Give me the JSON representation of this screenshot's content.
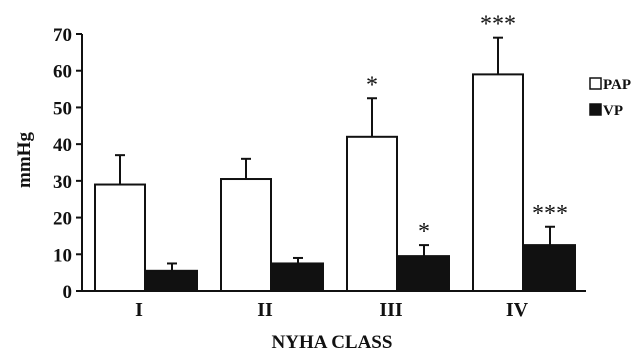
{
  "chart_data": {
    "type": "bar",
    "title": "",
    "xlabel": "NYHA CLASS",
    "ylabel": "mmHg",
    "ylim": [
      0,
      70
    ],
    "yticks": [
      0,
      10,
      20,
      30,
      40,
      50,
      60,
      70
    ],
    "categories": [
      "I",
      "II",
      "III",
      "IV"
    ],
    "series": [
      {
        "name": "PAPm",
        "color": "#ffffff",
        "values": [
          29,
          30.5,
          42,
          59
        ],
        "errors": [
          8,
          5.5,
          10.5,
          10
        ],
        "significance": [
          "",
          "",
          "*",
          "***"
        ]
      },
      {
        "name": "VP",
        "color": "#111111",
        "values": [
          5.5,
          7.5,
          9.5,
          12.5
        ],
        "errors": [
          2,
          1.5,
          3,
          5
        ],
        "significance": [
          "",
          "",
          "*",
          "***"
        ]
      }
    ],
    "legend_position": "right",
    "grid": false
  }
}
